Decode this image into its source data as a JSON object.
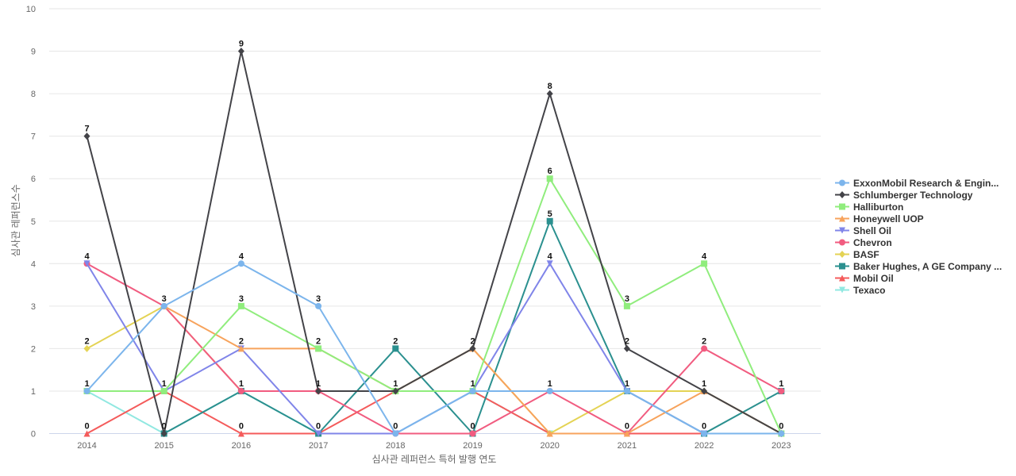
{
  "chart_data": {
    "type": "line",
    "title": "",
    "xlabel": "심사관 레퍼런스 특허 발행 연도",
    "ylabel": "심사관 레퍼런스수",
    "ylim": [
      0,
      10
    ],
    "yticks": [
      0,
      1,
      2,
      3,
      4,
      5,
      6,
      7,
      8,
      9,
      10
    ],
    "grid": true,
    "legend_position": "right",
    "x": [
      "2014",
      "2015",
      "2016",
      "2017",
      "2018",
      "2019",
      "2020",
      "2021",
      "2022",
      "2023"
    ],
    "series": [
      {
        "name": "ExxonMobil Research & Engin...",
        "color": "#7cb5ec",
        "marker": "circle",
        "values": [
          1,
          3,
          4,
          3,
          0,
          1,
          1,
          1,
          0,
          0
        ]
      },
      {
        "name": "Schlumberger Technology",
        "color": "#434348",
        "marker": "diamond",
        "values": [
          7,
          0,
          9,
          1,
          1,
          2,
          8,
          2,
          1,
          0
        ]
      },
      {
        "name": "Halliburton",
        "color": "#90ed7d",
        "marker": "square",
        "values": [
          1,
          1,
          3,
          2,
          1,
          1,
          6,
          3,
          4,
          0
        ]
      },
      {
        "name": "Honeywell UOP",
        "color": "#f7a35c",
        "marker": "triangle",
        "values": [
          null,
          3,
          2,
          2,
          1,
          2,
          0,
          0,
          1,
          0
        ]
      },
      {
        "name": "Shell Oil",
        "color": "#8085e9",
        "marker": "triangle-down",
        "values": [
          4,
          1,
          2,
          0,
          0,
          1,
          4,
          1,
          0,
          0
        ]
      },
      {
        "name": "Chevron",
        "color": "#f15c80",
        "marker": "circle",
        "values": [
          4,
          3,
          1,
          1,
          0,
          0,
          1,
          0,
          2,
          1
        ]
      },
      {
        "name": "BASF",
        "color": "#e4d354",
        "marker": "diamond",
        "values": [
          2,
          3,
          1,
          1,
          1,
          2,
          0,
          1,
          1,
          0
        ]
      },
      {
        "name": "Baker Hughes, A GE Company ...",
        "color": "#2b908f",
        "marker": "square",
        "values": [
          null,
          0,
          1,
          0,
          2,
          0,
          5,
          1,
          0,
          1
        ]
      },
      {
        "name": "Mobil Oil",
        "color": "#f45b5b",
        "marker": "triangle",
        "values": [
          0,
          1,
          0,
          0,
          1,
          1,
          0,
          0,
          0,
          0
        ]
      },
      {
        "name": "Texaco",
        "color": "#91e8e1",
        "marker": "triangle-down",
        "values": [
          1,
          0,
          1,
          0,
          0,
          1,
          0,
          0,
          0,
          0
        ]
      }
    ],
    "data_labels": [
      {
        "x": "2014",
        "y": 7,
        "text": "7"
      },
      {
        "x": "2014",
        "y": 4,
        "text": "4"
      },
      {
        "x": "2014",
        "y": 2,
        "text": "2"
      },
      {
        "x": "2014",
        "y": 1,
        "text": "1"
      },
      {
        "x": "2014",
        "y": 0,
        "text": "0"
      },
      {
        "x": "2015",
        "y": 3,
        "text": "3"
      },
      {
        "x": "2015",
        "y": 1,
        "text": "1"
      },
      {
        "x": "2015",
        "y": 0,
        "text": "0"
      },
      {
        "x": "2016",
        "y": 9,
        "text": "9"
      },
      {
        "x": "2016",
        "y": 4,
        "text": "4"
      },
      {
        "x": "2016",
        "y": 3,
        "text": "3"
      },
      {
        "x": "2016",
        "y": 2,
        "text": "2"
      },
      {
        "x": "2016",
        "y": 1,
        "text": "1"
      },
      {
        "x": "2016",
        "y": 0,
        "text": "0"
      },
      {
        "x": "2017",
        "y": 3,
        "text": "3"
      },
      {
        "x": "2017",
        "y": 2,
        "text": "2"
      },
      {
        "x": "2017",
        "y": 1,
        "text": "1"
      },
      {
        "x": "2017",
        "y": 0,
        "text": "0"
      },
      {
        "x": "2018",
        "y": 2,
        "text": "2"
      },
      {
        "x": "2018",
        "y": 1,
        "text": "1"
      },
      {
        "x": "2018",
        "y": 0,
        "text": "0"
      },
      {
        "x": "2019",
        "y": 2,
        "text": "2"
      },
      {
        "x": "2019",
        "y": 1,
        "text": "1"
      },
      {
        "x": "2019",
        "y": 0,
        "text": "0"
      },
      {
        "x": "2020",
        "y": 8,
        "text": "8"
      },
      {
        "x": "2020",
        "y": 6,
        "text": "6"
      },
      {
        "x": "2020",
        "y": 5,
        "text": "5"
      },
      {
        "x": "2020",
        "y": 4,
        "text": "4"
      },
      {
        "x": "2020",
        "y": 1,
        "text": "1"
      },
      {
        "x": "2021",
        "y": 3,
        "text": "3"
      },
      {
        "x": "2021",
        "y": 2,
        "text": "2"
      },
      {
        "x": "2021",
        "y": 1,
        "text": "1"
      },
      {
        "x": "2021",
        "y": 0,
        "text": "0"
      },
      {
        "x": "2022",
        "y": 4,
        "text": "4"
      },
      {
        "x": "2022",
        "y": 2,
        "text": "2"
      },
      {
        "x": "2022",
        "y": 1,
        "text": "1"
      },
      {
        "x": "2022",
        "y": 0,
        "text": "0"
      },
      {
        "x": "2023",
        "y": 1,
        "text": "1"
      },
      {
        "x": "2023",
        "y": 0,
        "text": "0"
      }
    ]
  }
}
